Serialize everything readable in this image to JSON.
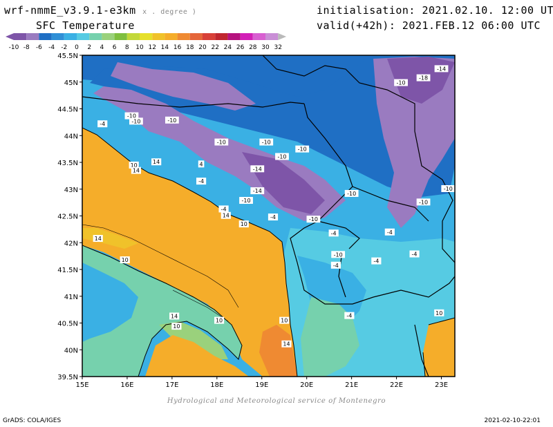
{
  "header": {
    "model": "wrf-nmmE_v3.9.1-e3km",
    "unit": "x . degree )",
    "variable": "SFC Temperature",
    "init_label": "initialisation:",
    "init_value": "2021.02.10. 12:00 UTC",
    "valid_label": "valid(+42h):",
    "valid_value": "2021.FEB.12 06:00 UTC"
  },
  "colorbar": {
    "levels": [
      -10,
      -8,
      -6,
      -4,
      -2,
      0,
      2,
      4,
      6,
      8,
      10,
      12,
      14,
      16,
      18,
      20,
      22,
      24,
      26,
      28,
      30,
      32
    ],
    "colors": [
      "#7e55a8",
      "#9a7bc0",
      "#1f6fc4",
      "#2f8fd6",
      "#3ab0e4",
      "#56cbe3",
      "#76d1ad",
      "#9ad17c",
      "#7fbf3f",
      "#c2d83a",
      "#e6e02b",
      "#f0c22a",
      "#f5ad2a",
      "#ef8a32",
      "#e5663a",
      "#d84038",
      "#c0262f",
      "#b5127e",
      "#d21fb7",
      "#d85fd1",
      "#c98fd6",
      "#bababa"
    ]
  },
  "map": {
    "lat_ticks": [
      "45.5N",
      "45N",
      "44.5N",
      "44N",
      "43.5N",
      "43N",
      "42.5N",
      "42N",
      "41.5N",
      "41N",
      "40.5N",
      "40N",
      "39.5N"
    ],
    "lon_ticks": [
      "15E",
      "16E",
      "17E",
      "18E",
      "19E",
      "20E",
      "21E",
      "22E",
      "23E"
    ],
    "labels": [
      {
        "t": "-14",
        "lon": 23.0,
        "lat": 45.25
      },
      {
        "t": "-18",
        "lon": 22.6,
        "lat": 45.08
      },
      {
        "t": "-10",
        "lon": 22.1,
        "lat": 44.99
      },
      {
        "t": "-10",
        "lon": 16.1,
        "lat": 44.37
      },
      {
        "t": "-10",
        "lon": 16.2,
        "lat": 44.27
      },
      {
        "t": "-10",
        "lon": 17.0,
        "lat": 44.29
      },
      {
        "t": "-4",
        "lon": 15.45,
        "lat": 44.22
      },
      {
        "t": "-10",
        "lon": 18.1,
        "lat": 43.88
      },
      {
        "t": "-10",
        "lon": 19.1,
        "lat": 43.88
      },
      {
        "t": "-10",
        "lon": 19.9,
        "lat": 43.75
      },
      {
        "t": "-10",
        "lon": 19.45,
        "lat": 43.61
      },
      {
        "t": "-14",
        "lon": 18.9,
        "lat": 43.38
      },
      {
        "t": "-4",
        "lon": 17.65,
        "lat": 43.15
      },
      {
        "t": "-14",
        "lon": 18.9,
        "lat": 42.97
      },
      {
        "t": "-10",
        "lon": 21.0,
        "lat": 42.92
      },
      {
        "t": "-10",
        "lon": 23.15,
        "lat": 43.01
      },
      {
        "t": "-10",
        "lon": 18.65,
        "lat": 42.79
      },
      {
        "t": "-10",
        "lon": 22.6,
        "lat": 42.76
      },
      {
        "t": "-4",
        "lon": 18.15,
        "lat": 42.63
      },
      {
        "t": "-4",
        "lon": 19.25,
        "lat": 42.48
      },
      {
        "t": "-10",
        "lon": 20.15,
        "lat": 42.44
      },
      {
        "t": "-4",
        "lon": 20.6,
        "lat": 42.18
      },
      {
        "t": "-4",
        "lon": 21.85,
        "lat": 42.2
      },
      {
        "t": "-10",
        "lon": 20.7,
        "lat": 41.78
      },
      {
        "t": "-4",
        "lon": 22.4,
        "lat": 41.79
      },
      {
        "t": "-4",
        "lon": 21.55,
        "lat": 41.66
      },
      {
        "t": "-4",
        "lon": 20.65,
        "lat": 41.58
      },
      {
        "t": "-4",
        "lon": 20.95,
        "lat": 40.64
      },
      {
        "t": "4",
        "lon": 17.65,
        "lat": 43.47
      },
      {
        "t": "14",
        "lon": 16.65,
        "lat": 43.51
      },
      {
        "t": "10",
        "lon": 16.15,
        "lat": 43.45
      },
      {
        "t": "14",
        "lon": 16.2,
        "lat": 43.35
      },
      {
        "t": "14",
        "lon": 18.2,
        "lat": 42.51
      },
      {
        "t": "10",
        "lon": 18.6,
        "lat": 42.35
      },
      {
        "t": "14",
        "lon": 15.35,
        "lat": 42.08
      },
      {
        "t": "10",
        "lon": 15.95,
        "lat": 41.68
      },
      {
        "t": "14",
        "lon": 17.05,
        "lat": 40.63
      },
      {
        "t": "10",
        "lon": 17.1,
        "lat": 40.44
      },
      {
        "t": "10",
        "lon": 18.05,
        "lat": 40.55
      },
      {
        "t": "10",
        "lon": 19.5,
        "lat": 40.55
      },
      {
        "t": "14",
        "lon": 19.55,
        "lat": 40.11
      },
      {
        "t": "10",
        "lon": 22.95,
        "lat": 40.69
      }
    ]
  },
  "credit": "Hydrological and Meteorological service of Montenegro",
  "footer": {
    "left": "GrADS: COLA/IGES",
    "right": "2021-02-10-22:01"
  }
}
